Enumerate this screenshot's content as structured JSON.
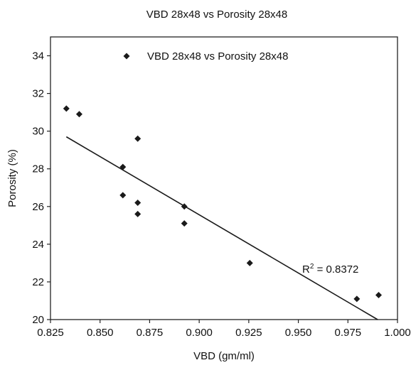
{
  "chart_data": {
    "type": "scatter",
    "title": "VBD 28x48 vs Porosity  28x48",
    "xlabel": "VBD (gm/ml)",
    "ylabel": "Porosity (%)",
    "xlim": [
      0.825,
      1.0
    ],
    "ylim": [
      20,
      35
    ],
    "x_ticks": [
      "0.825",
      "0.850",
      "0.875",
      "0.900",
      "0.925",
      "0.950",
      "0.975",
      "1.000"
    ],
    "y_ticks": [
      "20",
      "22",
      "24",
      "26",
      "28",
      "30",
      "32",
      "34"
    ],
    "grid": false,
    "legend_position": "top",
    "series": [
      {
        "name": "VBD 28x48 vs Porosity 28x48",
        "marker": "diamond",
        "color": "#1a1a1a",
        "points": [
          [
            0.833,
            31.2
          ],
          [
            0.8395,
            30.9
          ],
          [
            0.8615,
            28.1
          ],
          [
            0.8615,
            26.6
          ],
          [
            0.869,
            29.6
          ],
          [
            0.869,
            26.2
          ],
          [
            0.869,
            25.6
          ],
          [
            0.8925,
            26.0
          ],
          [
            0.8925,
            25.1
          ],
          [
            0.9255,
            23.0
          ],
          [
            0.9795,
            21.1
          ],
          [
            0.9905,
            21.3
          ]
        ]
      }
    ],
    "trendline": {
      "type": "linear",
      "x_start": 0.833,
      "y_start": 29.7,
      "x_end": 0.99,
      "y_end": 20.0,
      "color": "#1a1a1a"
    },
    "annotation": {
      "r2_label": "R",
      "r2_superscript": "2",
      "r2_value": " = 0.8372"
    }
  }
}
